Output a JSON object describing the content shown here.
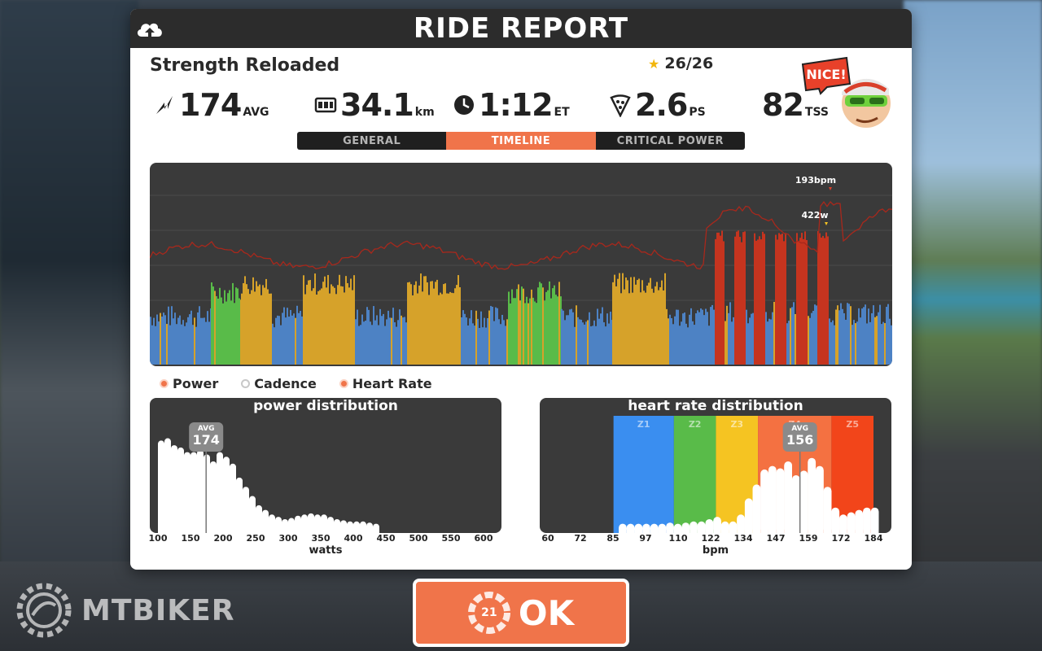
{
  "window": {
    "title": "RIDE REPORT"
  },
  "workout": {
    "name": "Strength Reloaded",
    "stars": "26/26"
  },
  "stats": {
    "power": {
      "value": "174",
      "unit": "AVG"
    },
    "distance": {
      "value": "34.1",
      "unit": "km"
    },
    "time": {
      "value": "1:12",
      "unit": "ET"
    },
    "pizza": {
      "value": "2.6",
      "unit": "PS"
    },
    "tss": {
      "value": "82",
      "unit": "TSS"
    }
  },
  "avatar": {
    "badge": "NICE!"
  },
  "tabs": [
    {
      "label": "GENERAL",
      "active": false
    },
    {
      "label": "TIMELINE",
      "active": true
    },
    {
      "label": "CRITICAL POWER",
      "active": false
    }
  ],
  "timeline": {
    "hr_peak_label": "193bpm",
    "power_peak_label": "422w"
  },
  "legend": {
    "power": "Power",
    "cadence": "Cadence",
    "heart_rate": "Heart Rate"
  },
  "power_dist": {
    "title": "power distribution",
    "avg_label": "AVG",
    "avg_value": "174",
    "avg": 174,
    "ticks": [
      "100",
      "150",
      "200",
      "250",
      "300",
      "350",
      "400",
      "450",
      "500",
      "550",
      "600"
    ],
    "axis_name": "watts",
    "xmin": 100,
    "xmax": 600,
    "bins_x": [
      100,
      110,
      120,
      130,
      140,
      150,
      160,
      170,
      180,
      190,
      200,
      210,
      220,
      230,
      240,
      250,
      260,
      270,
      280,
      290,
      300,
      310,
      320,
      330,
      340,
      350,
      360,
      370,
      380,
      390,
      400,
      410,
      420,
      430
    ],
    "bins_y": [
      0.8,
      0.82,
      0.76,
      0.74,
      0.7,
      0.7,
      0.72,
      0.68,
      0.62,
      0.7,
      0.66,
      0.6,
      0.48,
      0.4,
      0.32,
      0.24,
      0.2,
      0.16,
      0.14,
      0.12,
      0.13,
      0.15,
      0.16,
      0.17,
      0.16,
      0.16,
      0.14,
      0.12,
      0.11,
      0.1,
      0.1,
      0.1,
      0.09,
      0.08
    ]
  },
  "hr_dist": {
    "title": "heart rate distribution",
    "avg_label": "AVG",
    "avg_value": "156",
    "avg": 156,
    "ticks": [
      "60",
      "72",
      "85",
      "97",
      "110",
      "122",
      "134",
      "147",
      "159",
      "172",
      "184"
    ],
    "axis_name": "bpm",
    "xmin": 60,
    "xmax": 184,
    "zones": [
      {
        "label": "Z1",
        "from": 85,
        "to": 108,
        "color": "#3a8ef0"
      },
      {
        "label": "Z2",
        "from": 108,
        "to": 124,
        "color": "#59bb49"
      },
      {
        "label": "Z3",
        "from": 124,
        "to": 140,
        "color": "#f5c422"
      },
      {
        "label": "Z4",
        "from": 140,
        "to": 168,
        "color": "#f47141"
      },
      {
        "label": "Z5",
        "from": 168,
        "to": 184,
        "color": "#f2451a"
      }
    ],
    "bins_x": [
      87,
      90,
      93,
      96,
      99,
      102,
      105,
      108,
      111,
      114,
      117,
      120,
      123,
      126,
      129,
      132,
      135,
      138,
      141,
      144,
      147,
      150,
      153,
      156,
      159,
      162,
      165,
      168,
      171,
      174,
      177,
      180,
      183
    ],
    "bins_y": [
      0.08,
      0.08,
      0.08,
      0.08,
      0.08,
      0.08,
      0.09,
      0.08,
      0.09,
      0.1,
      0.1,
      0.12,
      0.14,
      0.1,
      0.1,
      0.16,
      0.3,
      0.42,
      0.55,
      0.58,
      0.56,
      0.62,
      0.5,
      0.54,
      0.65,
      0.58,
      0.4,
      0.22,
      0.16,
      0.18,
      0.2,
      0.22,
      0.22
    ]
  },
  "button": {
    "ok_label": "OK",
    "timer": "21"
  },
  "watermark": {
    "text": "MTBIKER"
  },
  "colors": {
    "accent": "#f0744a",
    "panel_dark": "#2c2c2c",
    "chart_bg": "#3a3a3a"
  }
}
